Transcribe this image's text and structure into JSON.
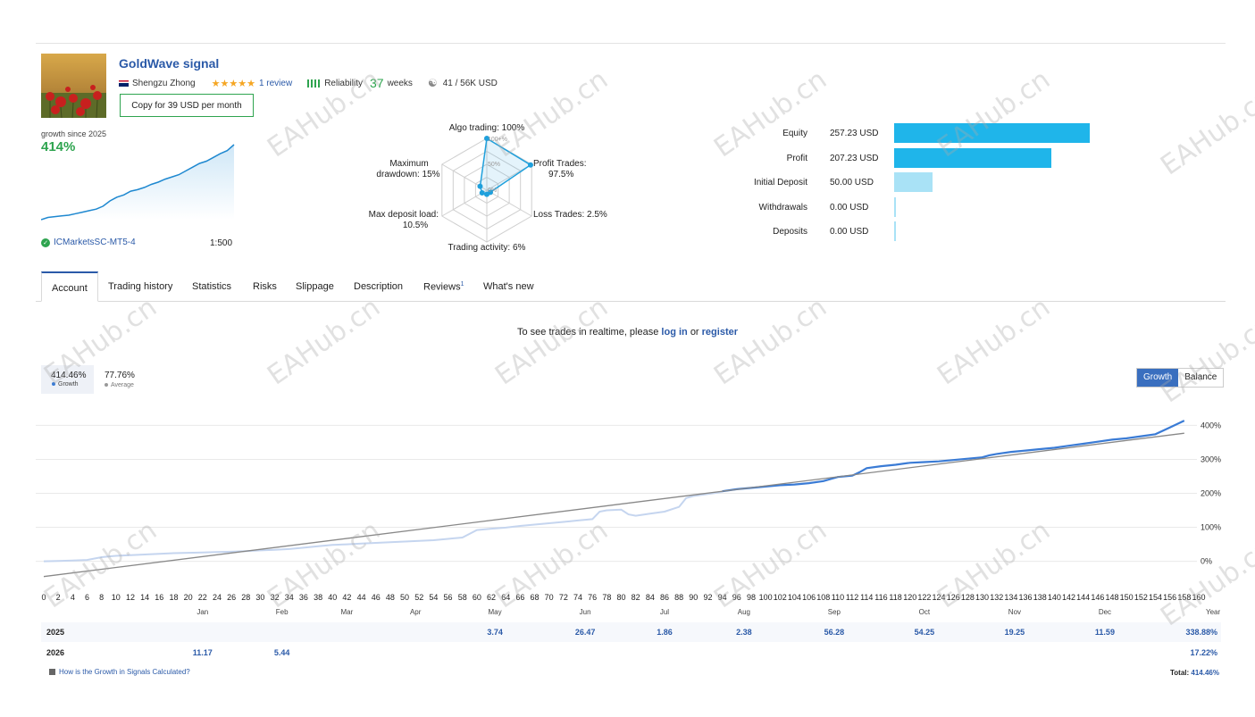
{
  "signal": {
    "title": "GoldWave signal",
    "author": "Shengzu Zhong",
    "stars": "★★★★★",
    "reviews": "1 review",
    "reliability_label": "Reliability",
    "weeks_num": "37",
    "weeks_label": "weeks",
    "subscribers": "41 / 56K USD",
    "copy_button": "Copy for 39 USD per month"
  },
  "summary": {
    "growth_label": "growth since 2025",
    "growth_value": "414%",
    "broker": "ICMarketsSC-MT5-4",
    "leverage": "1:500",
    "mini_series": [
      0,
      3,
      4,
      5,
      6,
      8,
      10,
      12,
      14,
      18,
      25,
      30,
      33,
      38,
      40,
      43,
      47,
      50,
      54,
      57,
      60,
      65,
      70,
      75,
      78,
      83,
      88,
      92,
      100
    ]
  },
  "radar": {
    "algo": "Algo trading: 100%",
    "profit": "Profit Trades:",
    "profit_val": "97.5%",
    "loss": "Loss Trades: 2.5%",
    "activity": "Trading activity: 6%",
    "maxload": "Max deposit load:",
    "maxload_val": "10.5%",
    "drawdown": "Maximum",
    "drawdown_val": "drawdown: 15%",
    "ring100": "100+%",
    "ring50": "50%",
    "ring0": "0%",
    "values": {
      "algo": 1.0,
      "profit": 0.975,
      "loss": 0.025,
      "activity": 0.06,
      "maxload": 0.105,
      "drawdown": 0.15
    }
  },
  "balances": [
    {
      "label": "Equity",
      "value": "257.23 USD",
      "amount": 257.23,
      "color": "#1fb5ea"
    },
    {
      "label": "Profit",
      "value": "207.23 USD",
      "amount": 207.23,
      "color": "#1fb5ea"
    },
    {
      "label": "Initial Deposit",
      "value": "50.00 USD",
      "amount": 50.0,
      "color": "#a9e2f6"
    },
    {
      "label": "Withdrawals",
      "value": "0.00 USD",
      "amount": 0,
      "color": "#a9e2f6"
    },
    {
      "label": "Deposits",
      "value": "0.00 USD",
      "amount": 0,
      "color": "#a9e2f6"
    }
  ],
  "tabs": [
    "Account",
    "Trading history",
    "Statistics",
    "Risks",
    "Slippage",
    "Description",
    "Reviews",
    "What's new"
  ],
  "reviews_badge": "1",
  "notice": {
    "pre": "To see trades in realtime, please",
    "login": "log in",
    "mid": "or",
    "register": "register"
  },
  "legend": {
    "growth_val": "414.46%",
    "growth_lbl": "Growth",
    "avg_val": "77.76%",
    "avg_lbl": "Average"
  },
  "toggle": {
    "growth": "Growth",
    "balance": "Balance"
  },
  "chart_data": {
    "type": "line",
    "x_ticks": [
      0,
      2,
      4,
      6,
      8,
      10,
      12,
      14,
      16,
      18,
      20,
      22,
      24,
      26,
      28,
      30,
      32,
      34,
      36,
      38,
      40,
      42,
      44,
      46,
      48,
      50,
      52,
      54,
      56,
      58,
      60,
      62,
      64,
      66,
      68,
      70,
      72,
      74,
      76,
      78,
      80,
      82,
      84,
      86,
      88,
      90,
      92,
      94,
      96,
      98,
      100,
      102,
      104,
      106,
      108,
      110,
      112,
      114,
      116,
      118,
      120,
      122,
      124,
      126,
      128,
      130,
      132,
      134,
      136,
      138,
      140,
      142,
      144,
      146,
      148,
      150,
      152,
      154,
      156,
      158,
      160
    ],
    "xlim": [
      0,
      160
    ],
    "ylim": [
      -30,
      430
    ],
    "y_ticks": [
      0,
      100,
      200,
      300,
      400
    ],
    "y_labels": [
      "0%",
      "100%",
      "200%",
      "300%",
      "400%"
    ],
    "months": [
      {
        "label": "Jan",
        "x": 22
      },
      {
        "label": "Feb",
        "x": 33
      },
      {
        "label": "Mar",
        "x": 42
      },
      {
        "label": "Apr",
        "x": 51.5
      },
      {
        "label": "May",
        "x": 62.5
      },
      {
        "label": "Jun",
        "x": 75
      },
      {
        "label": "Jul",
        "x": 86
      },
      {
        "label": "Aug",
        "x": 97
      },
      {
        "label": "Sep",
        "x": 109.5
      },
      {
        "label": "Oct",
        "x": 122
      },
      {
        "label": "Nov",
        "x": 134.5
      },
      {
        "label": "Dec",
        "x": 147
      }
    ],
    "year_label": "Year",
    "series": [
      {
        "values_x": [
          0,
          2,
          4,
          6,
          8,
          10,
          12,
          14,
          16,
          18,
          20,
          22,
          24,
          26,
          28,
          30,
          32,
          34,
          36,
          38,
          40,
          42,
          44,
          46,
          48,
          50,
          52,
          54,
          56,
          58,
          60,
          62,
          64,
          66,
          68,
          70,
          72,
          74,
          76,
          77,
          78,
          80,
          81,
          82,
          84,
          86,
          88,
          89,
          90,
          92,
          94
        ],
        "values_y": [
          0,
          1,
          2,
          4,
          12,
          16,
          18,
          20,
          22,
          24,
          25,
          26,
          27,
          28,
          30,
          32,
          34,
          36,
          40,
          44,
          48,
          50,
          52,
          54,
          56,
          58,
          60,
          62,
          66,
          70,
          92,
          96,
          99,
          104,
          108,
          112,
          116,
          120,
          124,
          146,
          150,
          152,
          138,
          134,
          140,
          146,
          160,
          186,
          192,
          198,
          204
        ]
      },
      {
        "values_x": [
          94,
          96,
          98,
          100,
          102,
          104,
          106,
          108,
          109,
          110,
          112,
          113,
          114,
          116,
          118,
          120,
          122,
          124,
          126,
          128,
          130,
          131,
          132,
          134,
          136,
          138,
          140,
          142,
          144,
          146,
          148,
          150,
          152,
          154,
          156,
          158
        ],
        "values_y": [
          206,
          212,
          216,
          220,
          224,
          226,
          230,
          236,
          242,
          248,
          252,
          262,
          274,
          280,
          284,
          290,
          292,
          294,
          298,
          302,
          306,
          312,
          316,
          322,
          326,
          330,
          334,
          340,
          346,
          352,
          358,
          362,
          368,
          374,
          394,
          414
        ]
      },
      {
        "values_x": [
          0,
          158
        ],
        "values_y": [
          -45,
          377
        ]
      }
    ]
  },
  "table": {
    "rows": [
      {
        "year": "2025",
        "cells": [
          {
            "m": "May",
            "v": "3.74"
          },
          {
            "m": "Jun",
            "v": "26.47"
          },
          {
            "m": "Jul",
            "v": "1.86"
          },
          {
            "m": "Aug",
            "v": "2.38"
          },
          {
            "m": "Sep",
            "v": "56.28"
          },
          {
            "m": "Oct",
            "v": "54.25"
          },
          {
            "m": "Nov",
            "v": "19.25"
          },
          {
            "m": "Dec",
            "v": "11.59"
          }
        ],
        "total": "338.88%"
      },
      {
        "year": "2026",
        "cells": [
          {
            "m": "Jan",
            "v": "11.17"
          },
          {
            "m": "Feb",
            "v": "5.44"
          }
        ],
        "total": "17.22%"
      }
    ]
  },
  "footer": {
    "howto": "How is the Growth in Signals Calculated?",
    "total_label": "Total:",
    "total_value": "414.46%"
  },
  "watermark": "EAHub.cn"
}
